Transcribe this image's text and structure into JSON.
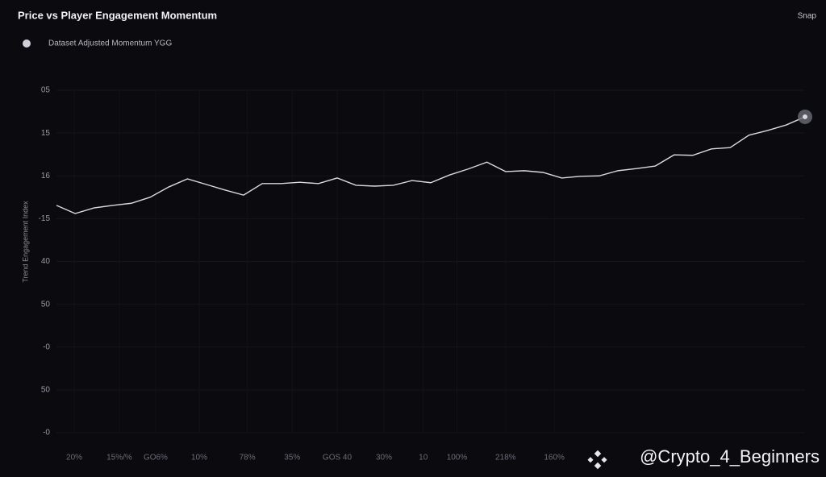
{
  "chart_data": {
    "type": "line",
    "title": "Price vs Player Engagement Momentum",
    "top_right_label": "Snap",
    "y_label": "Trend Engagement Index",
    "watermark": "@Crypto_4_Beginners",
    "series": [
      {
        "name": "Dataset Adjusted Momentum YGG",
        "color": "#d9d9e2",
        "values": [
          5.31,
          5.12,
          5.25,
          5.31,
          5.36,
          5.5,
          5.74,
          5.93,
          5.8,
          5.67,
          5.55,
          5.82,
          5.82,
          5.85,
          5.82,
          5.95,
          5.78,
          5.76,
          5.78,
          5.89,
          5.84,
          6.02,
          6.16,
          6.32,
          6.1,
          6.12,
          6.08,
          5.95,
          5.99,
          6.0,
          6.12,
          6.17,
          6.23,
          6.49,
          6.48,
          6.63,
          6.66,
          6.95,
          7.06,
          7.19,
          7.38
        ]
      }
    ],
    "x": [
      0,
      1,
      2,
      3,
      4,
      5,
      6,
      7,
      8,
      9,
      10,
      11,
      12,
      13,
      14,
      15,
      16,
      17,
      18,
      19,
      20,
      21,
      22,
      23,
      24,
      25,
      26,
      27,
      28,
      29,
      30,
      31,
      32,
      33,
      34,
      35,
      36,
      37,
      38,
      39,
      40
    ],
    "xlim": [
      0,
      40
    ],
    "xticks": [
      {
        "value": 0.95,
        "label": "20%"
      },
      {
        "value": 3.36,
        "label": "15%/%"
      },
      {
        "value": 5.3,
        "label": "GO6%"
      },
      {
        "value": 7.63,
        "label": "10%"
      },
      {
        "value": 10.2,
        "label": "78%"
      },
      {
        "value": 12.6,
        "label": "35%"
      },
      {
        "value": 15,
        "label": "GOS 40"
      },
      {
        "value": 17.5,
        "label": "30%"
      },
      {
        "value": 19.6,
        "label": "10"
      },
      {
        "value": 21.4,
        "label": "100%"
      },
      {
        "value": 24,
        "label": "218%"
      },
      {
        "value": 26.6,
        "label": "160%"
      }
    ],
    "ylim": [
      0,
      8
    ],
    "yticks": [
      {
        "value": 8,
        "label": "05"
      },
      {
        "value": 7,
        "label": "15"
      },
      {
        "value": 6,
        "label": "16"
      },
      {
        "value": 5,
        "label": "-15"
      },
      {
        "value": 4,
        "label": "40"
      },
      {
        "value": 3,
        "label": "50"
      },
      {
        "value": 2,
        "label": "-0"
      },
      {
        "value": 1,
        "label": "50"
      },
      {
        "value": 0,
        "label": "-0"
      }
    ],
    "grid": true
  }
}
